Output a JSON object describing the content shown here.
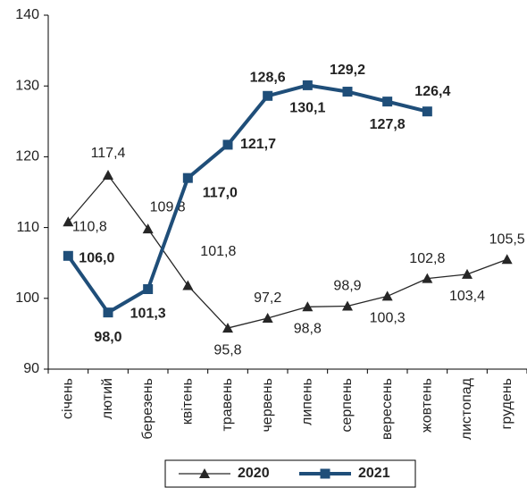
{
  "chart_data": {
    "type": "line",
    "categories": [
      "січень",
      "лютий",
      "березень",
      "квітень",
      "травень",
      "червень",
      "липень",
      "серпень",
      "вересень",
      "жовтень",
      "листопад",
      "грудень"
    ],
    "series": [
      {
        "name": "2020",
        "color": "#262626",
        "marker": "triangle",
        "values": [
          110.8,
          117.4,
          109.8,
          101.8,
          95.8,
          97.2,
          98.8,
          98.9,
          100.3,
          102.8,
          103.4,
          105.5
        ],
        "value_labels": [
          "110,8",
          "117,4",
          "109,8",
          "101,8",
          "95,8",
          "97,2",
          "98,8",
          "98,9",
          "100,3",
          "102,8",
          "103,4",
          "105,5"
        ]
      },
      {
        "name": "2021",
        "color": "#1f4e79",
        "marker": "square",
        "values": [
          106.0,
          98.0,
          101.3,
          117.0,
          121.7,
          128.6,
          130.1,
          129.2,
          127.8,
          126.4,
          null,
          null
        ],
        "value_labels": [
          "106,0",
          "98,0",
          "101,3",
          "117,0",
          "121,7",
          "128,6",
          "130,1",
          "129,2",
          "127,8",
          "126,4",
          null,
          null
        ]
      }
    ],
    "ylim": [
      90,
      140
    ],
    "yticks": [
      90,
      100,
      110,
      120,
      130,
      140
    ],
    "grid": false,
    "legend": "bottom"
  }
}
